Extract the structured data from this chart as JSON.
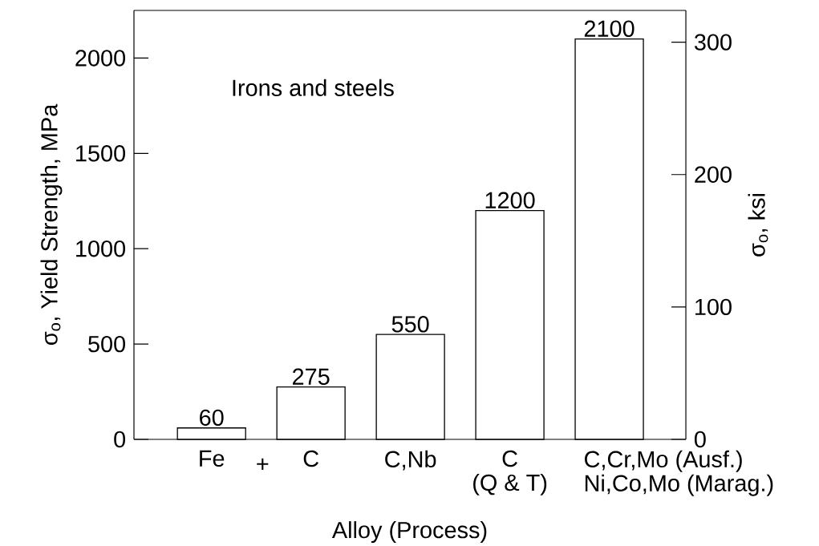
{
  "chart_data": {
    "type": "bar",
    "xlabel": "Alloy (Process)",
    "ylabel": "σ$_{o}$, Yield Strength, MPa",
    "y2label": "σ$_{o}$, ksi",
    "categories": [
      "Fe",
      "C",
      "C,Nb",
      "C (Q & T)",
      "C,Cr,Mo (Ausf.) Ni,Co,Mo (Marag.)"
    ],
    "values": [
      60,
      275,
      550,
      1200,
      2100
    ],
    "color": "#000000",
    "data_labels": true,
    "ylim": [
      0,
      2250
    ],
    "yticks": [
      0,
      500,
      1000,
      1500,
      2000
    ],
    "y2lim": [
      0,
      324
    ],
    "y2ticks": [
      0,
      100,
      200,
      300
    ],
    "annotations": [
      "Irons and steels",
      "+"
    ]
  }
}
